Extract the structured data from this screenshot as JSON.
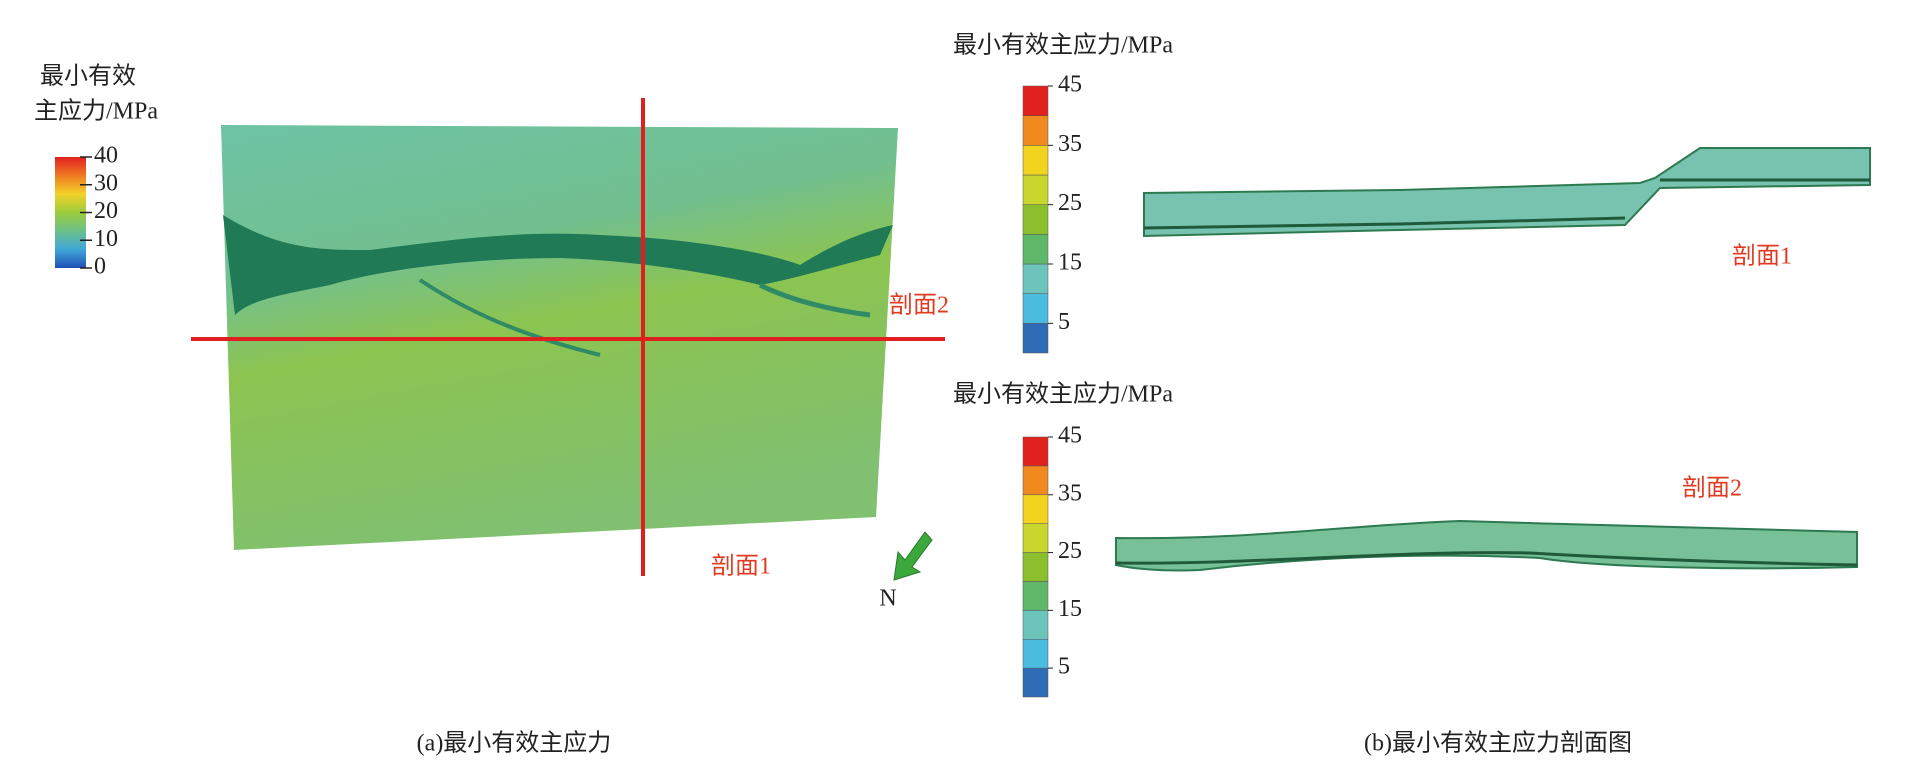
{
  "panel_a": {
    "legend": {
      "title": [
        "最小有效",
        "主应力/MPa"
      ],
      "range": [
        0,
        40
      ],
      "ticks": [
        0,
        10,
        20,
        30,
        40
      ],
      "colors": [
        "#1f4fb5",
        "#3fa6d8",
        "#6cc08a",
        "#9ccc3c",
        "#f2d22a",
        "#f07a22",
        "#e02020"
      ]
    },
    "section_labels": [
      "剖面1",
      "剖面2"
    ],
    "north": "N",
    "caption": "(a)最小有效主应力"
  },
  "panel_b": {
    "legends": [
      {
        "title": "最小有效主应力/MPa",
        "range": [
          0,
          45
        ],
        "ticks": [
          5,
          15,
          25,
          35,
          45
        ],
        "colors": [
          "#2e6db5",
          "#4bbbe0",
          "#6cc4bb",
          "#5fb86a",
          "#8cbf2e",
          "#c8d62e",
          "#f2d31f",
          "#f08a1e",
          "#e0221f"
        ]
      },
      {
        "title": "最小有效主应力/MPa",
        "range": [
          0,
          45
        ],
        "ticks": [
          5,
          15,
          25,
          35,
          45
        ],
        "colors": [
          "#2e6db5",
          "#4bbbe0",
          "#6cc4bb",
          "#5fb86a",
          "#8cbf2e",
          "#c8d62e",
          "#f2d31f",
          "#f08a1e",
          "#e0221f"
        ]
      }
    ],
    "section_labels": [
      "剖面1",
      "剖面2"
    ],
    "caption": "(b)最小有效主应力剖面图"
  }
}
